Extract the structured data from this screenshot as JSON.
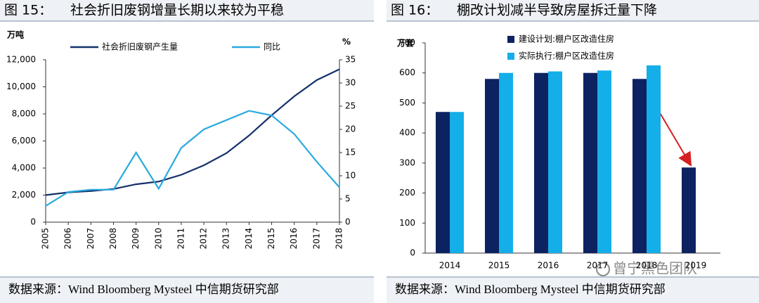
{
  "chart_data": [
    {
      "type": "line",
      "figure_label": "图 15：",
      "title": "社会折旧废钢增量长期以来较为平稳",
      "y_label": "万吨",
      "y2_label": "%",
      "categories": [
        "2005",
        "2006",
        "2007",
        "2008",
        "2009",
        "2010",
        "2011",
        "2012",
        "2013",
        "2014",
        "2015",
        "2016",
        "2017",
        "2018"
      ],
      "series": [
        {
          "name": "社会折旧废钢产生量",
          "color": "#14306b",
          "values": [
            2000,
            2200,
            2300,
            2450,
            2800,
            3000,
            3500,
            4200,
            5100,
            6400,
            7900,
            9300,
            10500,
            11300
          ]
        },
        {
          "name": "同比",
          "color": "#2aa9e0",
          "axis": "y2",
          "values": [
            3.5,
            6.5,
            7,
            7,
            15,
            7.2,
            16,
            20,
            22,
            24,
            23,
            19,
            13,
            7.5
          ]
        }
      ],
      "ylim": [
        0,
        12000
      ],
      "yticks": [
        0,
        {
          "value": 2000,
          "label": "2,000"
        },
        {
          "value": 4000,
          "label": "4,000"
        },
        {
          "value": 6000,
          "label": "6,000"
        },
        {
          "value": 8000,
          "label": "8,000"
        },
        {
          "value": 10000,
          "label": "10,000"
        },
        {
          "value": 12000,
          "label": "12,000"
        }
      ],
      "y2lim": [
        0,
        35
      ],
      "y2ticks": [
        0,
        5,
        10,
        15,
        20,
        25,
        30,
        35
      ],
      "source": "数据来源：Wind Bloomberg Mysteel 中信期货研究部"
    },
    {
      "type": "bar",
      "figure_label": "图 16：",
      "title": "棚改计划减半导致房屋拆迁量下降",
      "y_label": "万套",
      "categories": [
        "2014",
        "2015",
        "2016",
        "2017",
        "2018",
        "2019"
      ],
      "series": [
        {
          "name": "建设计划:棚户区改造住房",
          "color": "#0d2260",
          "values": [
            470,
            580,
            600,
            600,
            580,
            285
          ]
        },
        {
          "name": "实际执行:棚户区改造住房",
          "color": "#14aee8",
          "values": [
            470,
            600,
            605,
            608,
            625,
            null
          ]
        }
      ],
      "ylim": [
        0,
        700
      ],
      "yticks": [
        0,
        100,
        200,
        300,
        400,
        500,
        600,
        700
      ],
      "source": "数据来源：Wind Bloomberg Mysteel 中信期货研究部"
    }
  ],
  "watermark": "曾宁黑色团队"
}
